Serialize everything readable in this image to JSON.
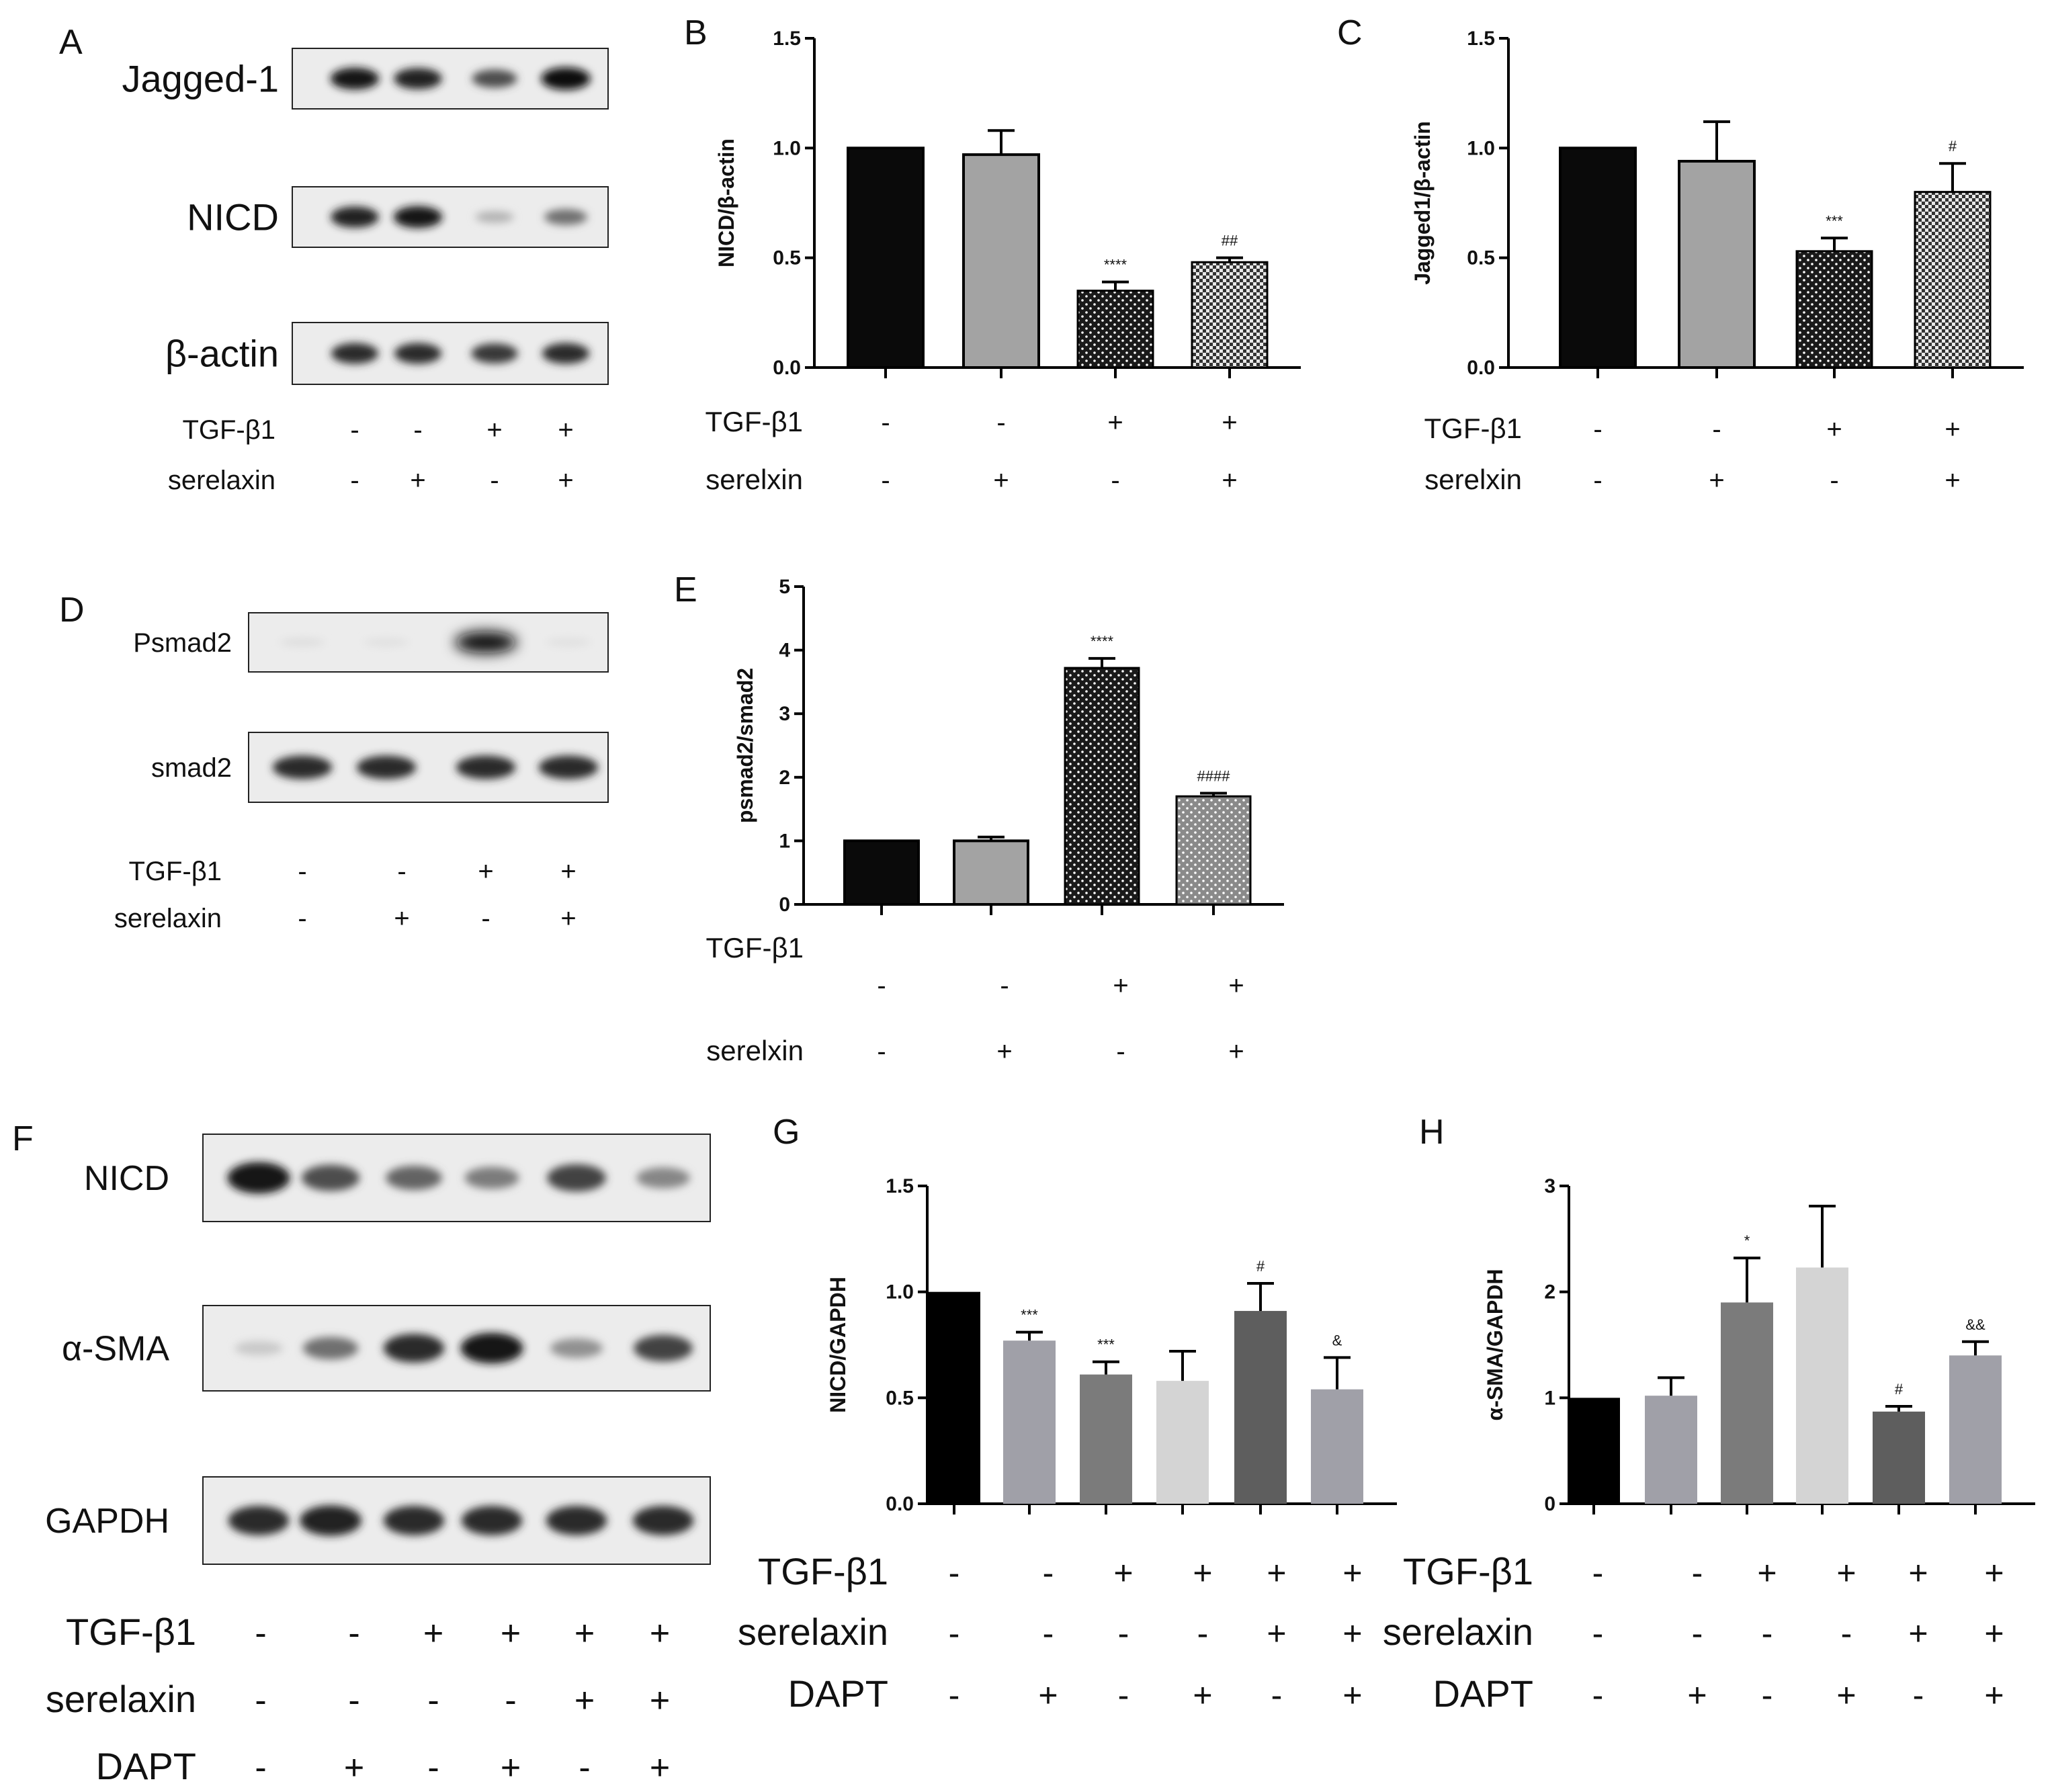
{
  "panel_letters": [
    "A",
    "B",
    "C",
    "D",
    "E",
    "F",
    "G",
    "H"
  ],
  "blots": {
    "A": {
      "bands": [
        {
          "label": "Jagged-1",
          "intensity": [
            0.95,
            0.9,
            0.7,
            1.0
          ]
        },
        {
          "label": "NICD",
          "intensity": [
            0.9,
            0.95,
            0.25,
            0.55
          ]
        },
        {
          "label": "β-actin",
          "intensity": [
            0.85,
            0.85,
            0.8,
            0.85
          ]
        }
      ]
    },
    "D": {
      "bands": [
        {
          "label": "Psmad2",
          "intensity": [
            0.06,
            0.05,
            1.0,
            0.05
          ]
        },
        {
          "label": "smad2",
          "intensity": [
            0.85,
            0.85,
            0.85,
            0.85
          ]
        }
      ]
    },
    "F": {
      "bands": [
        {
          "label": "NICD",
          "intensity": [
            0.95,
            0.7,
            0.6,
            0.5,
            0.75,
            0.45
          ]
        },
        {
          "label": "α-SMA",
          "intensity": [
            0.15,
            0.55,
            0.85,
            0.95,
            0.4,
            0.75
          ]
        },
        {
          "label": "GAPDH",
          "intensity": [
            0.85,
            0.9,
            0.85,
            0.85,
            0.85,
            0.85
          ]
        }
      ]
    }
  },
  "conditions": {
    "A": [
      {
        "label": "TGF-β1",
        "values": [
          "-",
          "-",
          "+",
          "+"
        ]
      },
      {
        "label": "serelaxin",
        "values": [
          "-",
          "+",
          "-",
          "+"
        ]
      }
    ],
    "B": [
      {
        "label": "TGF-β1",
        "values": [
          "-",
          "-",
          "+",
          "+"
        ]
      },
      {
        "label": "serelxin",
        "values": [
          "-",
          "+",
          "-",
          "+"
        ]
      }
    ],
    "C": [
      {
        "label": "TGF-β1",
        "values": [
          "-",
          "-",
          "+",
          "+"
        ]
      },
      {
        "label": "serelxin",
        "values": [
          "-",
          "+",
          "-",
          "+"
        ]
      }
    ],
    "D": [
      {
        "label": "TGF-β1",
        "values": [
          "-",
          "-",
          "+",
          "+"
        ]
      },
      {
        "label": "serelaxin",
        "values": [
          "-",
          "+",
          "-",
          "+"
        ]
      }
    ],
    "E": [
      {
        "label": "TGF-β1",
        "values": [
          "-",
          "-",
          "+",
          "+"
        ]
      },
      {
        "label": "serelxin",
        "values": [
          "-",
          "+",
          "-",
          "+"
        ]
      }
    ],
    "F": [
      {
        "label": "TGF-β1",
        "values": [
          "-",
          "-",
          "+",
          "+",
          "+",
          "+"
        ]
      },
      {
        "label": "serelaxin",
        "values": [
          "-",
          "-",
          "-",
          "-",
          "+",
          "+"
        ]
      },
      {
        "label": "DAPT",
        "values": [
          "-",
          "+",
          "-",
          "+",
          "-",
          "+"
        ]
      }
    ],
    "G": [
      {
        "label": "TGF-β1",
        "values": [
          "-",
          "-",
          "+",
          "+",
          "+",
          "+"
        ]
      },
      {
        "label": "serelaxin",
        "values": [
          "-",
          "-",
          "-",
          "-",
          "+",
          "+"
        ]
      },
      {
        "label": "DAPT",
        "values": [
          "-",
          "+",
          "-",
          "+",
          "-",
          "+"
        ]
      }
    ],
    "H": [
      {
        "label": "TGF-β1",
        "values": [
          "-",
          "-",
          "+",
          "+",
          "+",
          "+"
        ]
      },
      {
        "label": "serelaxin",
        "values": [
          "-",
          "-",
          "-",
          "-",
          "+",
          "+"
        ]
      },
      {
        "label": "DAPT",
        "values": [
          "-",
          "+",
          "-",
          "+",
          "-",
          "+"
        ]
      }
    ]
  },
  "chart_data": [
    {
      "panel": "B",
      "type": "bar",
      "ylabel": "NICD/β-actin",
      "ylim": [
        0,
        1.5
      ],
      "yticks": [
        "0.0",
        "0.5",
        "1.0",
        "1.5"
      ],
      "values": [
        1.0,
        0.97,
        0.35,
        0.48
      ],
      "errors": [
        0,
        0.11,
        0.04,
        0.02
      ],
      "sig": [
        "",
        "",
        "****",
        "##"
      ],
      "colors": [
        "#0a0a0a",
        "#a3a3a3",
        "#2a2a2a",
        "#cfcfcf"
      ],
      "patterns": [
        "solid",
        "solid",
        "dots",
        "checker"
      ]
    },
    {
      "panel": "C",
      "type": "bar",
      "ylabel": "Jagged1/β-actin",
      "ylim": [
        0,
        1.5
      ],
      "yticks": [
        "0.0",
        "0.5",
        "1.0",
        "1.5"
      ],
      "values": [
        1.0,
        0.94,
        0.53,
        0.8
      ],
      "errors": [
        0,
        0.18,
        0.06,
        0.13
      ],
      "sig": [
        "",
        "",
        "***",
        "#"
      ],
      "colors": [
        "#0a0a0a",
        "#a3a3a3",
        "#2a2a2a",
        "#cfcfcf"
      ],
      "patterns": [
        "solid",
        "solid",
        "dots",
        "checker"
      ]
    },
    {
      "panel": "E",
      "type": "bar",
      "ylabel": "psmad2/smad2",
      "ylim": [
        0,
        5
      ],
      "yticks": [
        "0",
        "1",
        "2",
        "3",
        "4",
        "5"
      ],
      "values": [
        1.0,
        1.0,
        3.72,
        1.7
      ],
      "errors": [
        0,
        0.06,
        0.15,
        0.05
      ],
      "sig": [
        "",
        "",
        "****",
        "####"
      ],
      "colors": [
        "#0a0a0a",
        "#a3a3a3",
        "#1a1a1a",
        "#8a8a8a"
      ],
      "patterns": [
        "solid",
        "solid",
        "dots",
        "dots"
      ]
    },
    {
      "panel": "G",
      "type": "bar",
      "ylabel": "NICD/GAPDH",
      "ylim": [
        0,
        1.5
      ],
      "yticks": [
        "0.0",
        "0.5",
        "1.0",
        "1.5"
      ],
      "values": [
        1.0,
        0.77,
        0.61,
        0.58,
        0.91,
        0.54
      ],
      "errors": [
        0,
        0.04,
        0.06,
        0.14,
        0.13,
        0.15
      ],
      "sig": [
        "",
        "***",
        "***",
        "",
        "#",
        "&"
      ],
      "colors": [
        "#000000",
        "#a0a0a8",
        "#7b7b7b",
        "#d4d4d4",
        "#5e5e5e",
        "#a0a0a8"
      ],
      "patterns": [
        "solid",
        "solid",
        "solid",
        "solid",
        "solid",
        "solid"
      ]
    },
    {
      "panel": "H",
      "type": "bar",
      "ylabel": "α-SMA/GAPDH",
      "ylim": [
        0,
        3
      ],
      "yticks": [
        "0",
        "1",
        "2",
        "3"
      ],
      "values": [
        1.0,
        1.02,
        1.9,
        2.23,
        0.87,
        1.4
      ],
      "errors": [
        0,
        0.17,
        0.42,
        0.58,
        0.05,
        0.13
      ],
      "sig": [
        "",
        "",
        "*",
        "",
        "#",
        "&&"
      ],
      "colors": [
        "#000000",
        "#a0a0a8",
        "#7b7b7b",
        "#d4d4d4",
        "#5e5e5e",
        "#a0a0a8"
      ],
      "patterns": [
        "solid",
        "solid",
        "solid",
        "solid",
        "solid",
        "solid"
      ]
    }
  ]
}
